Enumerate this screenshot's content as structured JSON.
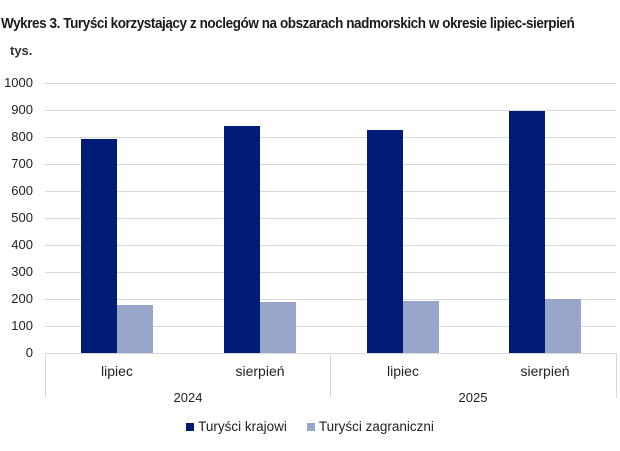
{
  "title": "Wykres 3. Turyści korzystający z noclegów na obszarach nadmorskich w okresie lipiec-sierpień",
  "unit": "tys.",
  "colors": {
    "krajowi": "#001c77",
    "zagraniczni": "#98a6cb",
    "grid": "#d9d9d9"
  },
  "legend": [
    {
      "label": "Turyści krajowi",
      "color": "#001c77"
    },
    {
      "label": "Turyści zagraniczni",
      "color": "#98a6cb"
    }
  ],
  "chart_data": {
    "type": "bar",
    "title": "Wykres 3. Turyści korzystający z noclegów na obszarach nadmorskich w okresie lipiec-sierpień",
    "ylabel": "tys.",
    "xlabel": "",
    "ylim": [
      0,
      1000
    ],
    "yticks": [
      0,
      100,
      200,
      300,
      400,
      500,
      600,
      700,
      800,
      900,
      1000
    ],
    "grid": true,
    "legend_position": "bottom",
    "categories": [
      "lipiec 2024",
      "sierpień 2024",
      "lipiec 2025",
      "sierpień 2025"
    ],
    "category_levels": {
      "months": [
        "lipiec",
        "sierpień",
        "lipiec",
        "sierpień"
      ],
      "years": [
        "2024",
        "2025"
      ]
    },
    "series": [
      {
        "name": "Turyści krajowi",
        "values": [
          793,
          841,
          826,
          897
        ]
      },
      {
        "name": "Turyści zagraniczni",
        "values": [
          177,
          190,
          194,
          199
        ]
      }
    ]
  }
}
